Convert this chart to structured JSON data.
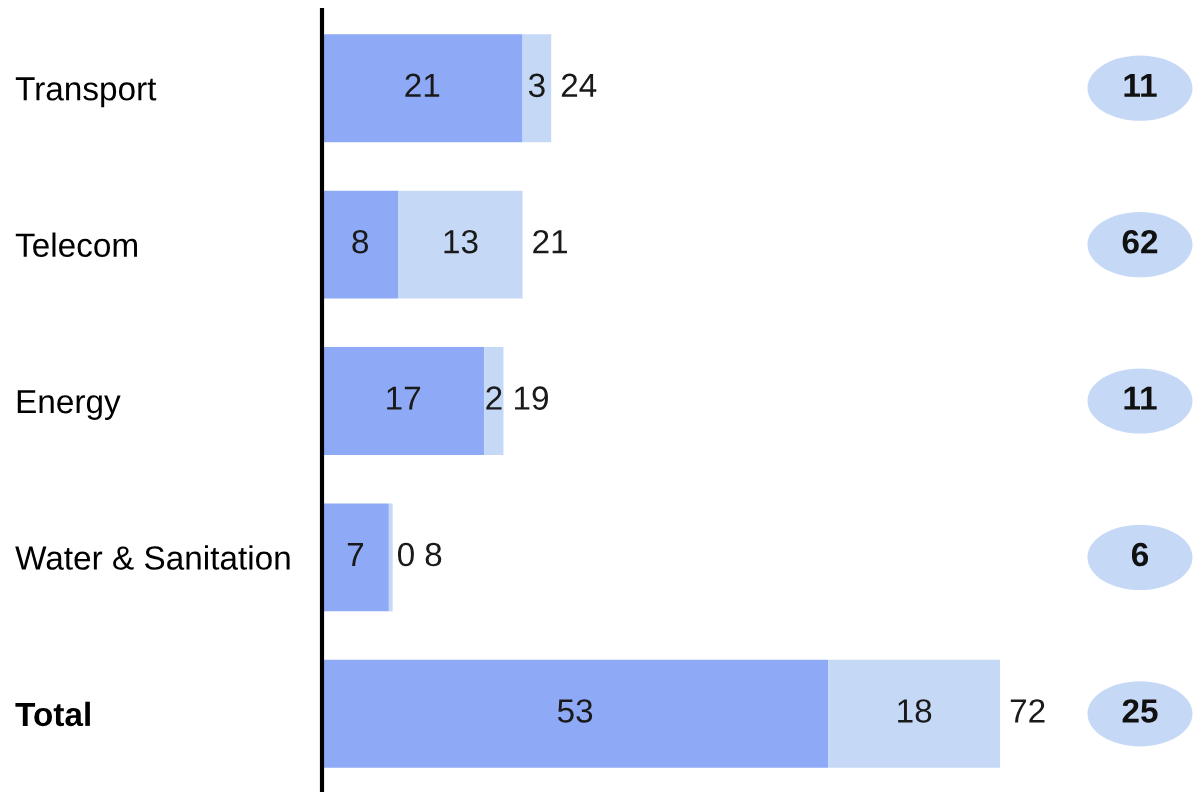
{
  "chart_data": {
    "type": "bar",
    "orientation": "horizontal",
    "stacked": true,
    "categories": [
      "Transport",
      "Telecom",
      "Energy",
      "Water & Sanitation",
      "Total"
    ],
    "series": [
      {
        "color": "#8eaaf6",
        "values": [
          21,
          8,
          17,
          7,
          53
        ],
        "value_labels": [
          "21",
          "8",
          "17",
          "7",
          "53"
        ]
      },
      {
        "color": "#c5d9f7",
        "values": [
          3,
          13,
          2,
          0.4,
          18
        ],
        "value_labels": [
          "3",
          "13",
          "2",
          "0",
          "18"
        ]
      }
    ],
    "totals": [
      "24",
      "21",
      "19",
      "8",
      "72"
    ],
    "tick_labels": "y",
    "grid": false,
    "legend": false,
    "annotations": [
      "11",
      "62",
      "11",
      "6",
      "25"
    ]
  }
}
